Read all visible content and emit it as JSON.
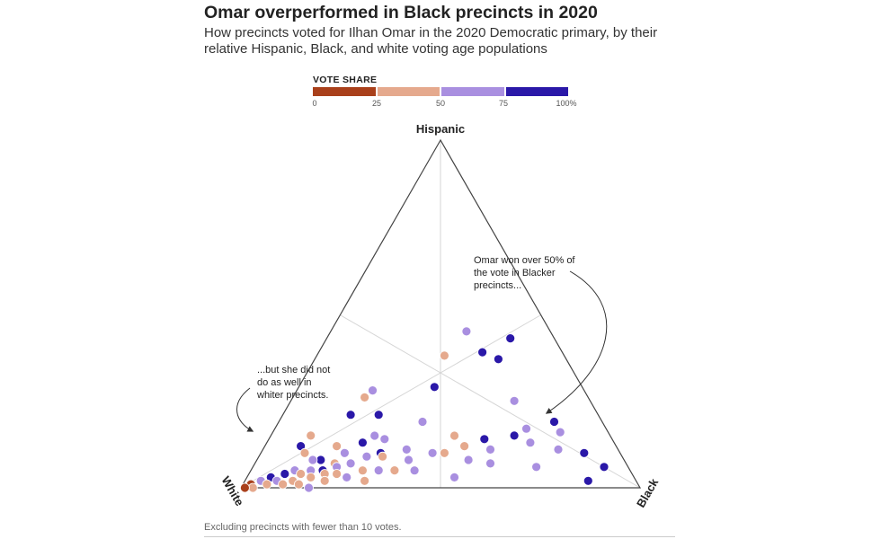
{
  "title": "Omar overperformed in Black precincts in 2020",
  "subtitle": "How precincts voted for Ilhan Omar in the 2020 Democratic primary, by their relative Hispanic, Black, and white voting age populations",
  "legend": {
    "title": "VOTE SHARE",
    "ticks": [
      "0",
      "25",
      "50",
      "75",
      "100%"
    ],
    "colors": [
      "#a9401b",
      "#e5a98d",
      "#a98fe0",
      "#2a18a8"
    ]
  },
  "annotations": {
    "right": "Omar won over 50% of the vote in Blacker precincts...",
    "left": "...but she did not do as well in whiter precincts."
  },
  "note": "Excluding precincts with fewer than 10 votes.",
  "chart_data": {
    "type": "scatter",
    "subtype": "ternary",
    "axes": [
      "Hispanic",
      "Black",
      "White"
    ],
    "color_scale": {
      "variable": "Vote share for Ilhan Omar",
      "bins": [
        [
          0,
          25
        ],
        [
          25,
          50
        ],
        [
          50,
          75
        ],
        [
          75,
          100
        ]
      ],
      "colors": [
        "#a9401b",
        "#e5a98d",
        "#a98fe0",
        "#2a18a8"
      ]
    },
    "points": [
      {
        "h": 0.45,
        "b": 0.34,
        "w": 0.21,
        "v": 60
      },
      {
        "h": 0.43,
        "b": 0.46,
        "w": 0.11,
        "v": 85
      },
      {
        "h": 0.39,
        "b": 0.41,
        "w": 0.2,
        "v": 85
      },
      {
        "h": 0.38,
        "b": 0.32,
        "w": 0.3,
        "v": 45
      },
      {
        "h": 0.37,
        "b": 0.46,
        "w": 0.17,
        "v": 85
      },
      {
        "h": 0.29,
        "b": 0.34,
        "w": 0.37,
        "v": 85
      },
      {
        "h": 0.28,
        "b": 0.19,
        "w": 0.53,
        "v": 60
      },
      {
        "h": 0.25,
        "b": 0.56,
        "w": 0.19,
        "v": 60
      },
      {
        "h": 0.26,
        "b": 0.18,
        "w": 0.56,
        "v": 45
      },
      {
        "h": 0.21,
        "b": 0.17,
        "w": 0.62,
        "v": 85
      },
      {
        "h": 0.21,
        "b": 0.24,
        "w": 0.55,
        "v": 85
      },
      {
        "h": 0.19,
        "b": 0.69,
        "w": 0.12,
        "v": 85
      },
      {
        "h": 0.19,
        "b": 0.36,
        "w": 0.45,
        "v": 60
      },
      {
        "h": 0.17,
        "b": 0.63,
        "w": 0.2,
        "v": 60
      },
      {
        "h": 0.16,
        "b": 0.72,
        "w": 0.12,
        "v": 60
      },
      {
        "h": 0.15,
        "b": 0.1,
        "w": 0.75,
        "v": 45
      },
      {
        "h": 0.15,
        "b": 0.61,
        "w": 0.24,
        "v": 85
      },
      {
        "h": 0.15,
        "b": 0.26,
        "w": 0.59,
        "v": 60
      },
      {
        "h": 0.14,
        "b": 0.29,
        "w": 0.57,
        "v": 60
      },
      {
        "h": 0.15,
        "b": 0.46,
        "w": 0.39,
        "v": 45
      },
      {
        "h": 0.14,
        "b": 0.54,
        "w": 0.32,
        "v": 85
      },
      {
        "h": 0.13,
        "b": 0.66,
        "w": 0.21,
        "v": 60
      },
      {
        "h": 0.13,
        "b": 0.24,
        "w": 0.63,
        "v": 85
      },
      {
        "h": 0.12,
        "b": 0.09,
        "w": 0.79,
        "v": 85
      },
      {
        "h": 0.12,
        "b": 0.5,
        "w": 0.38,
        "v": 45
      },
      {
        "h": 0.12,
        "b": 0.18,
        "w": 0.7,
        "v": 45
      },
      {
        "h": 0.1,
        "b": 0.81,
        "w": 0.09,
        "v": 85
      },
      {
        "h": 0.11,
        "b": 0.57,
        "w": 0.32,
        "v": 60
      },
      {
        "h": 0.11,
        "b": 0.36,
        "w": 0.53,
        "v": 60
      },
      {
        "h": 0.1,
        "b": 0.43,
        "w": 0.47,
        "v": 60
      },
      {
        "h": 0.11,
        "b": 0.74,
        "w": 0.15,
        "v": 60
      },
      {
        "h": 0.1,
        "b": 0.11,
        "w": 0.79,
        "v": 45
      },
      {
        "h": 0.1,
        "b": 0.3,
        "w": 0.6,
        "v": 85
      },
      {
        "h": 0.1,
        "b": 0.46,
        "w": 0.44,
        "v": 45
      },
      {
        "h": 0.1,
        "b": 0.21,
        "w": 0.69,
        "v": 60
      },
      {
        "h": 0.08,
        "b": 0.53,
        "w": 0.39,
        "v": 60
      },
      {
        "h": 0.09,
        "b": 0.27,
        "w": 0.64,
        "v": 60
      },
      {
        "h": 0.09,
        "b": 0.31,
        "w": 0.6,
        "v": 45
      },
      {
        "h": 0.08,
        "b": 0.38,
        "w": 0.54,
        "v": 60
      },
      {
        "h": 0.07,
        "b": 0.59,
        "w": 0.34,
        "v": 60
      },
      {
        "h": 0.08,
        "b": 0.16,
        "w": 0.76,
        "v": 85
      },
      {
        "h": 0.08,
        "b": 0.14,
        "w": 0.78,
        "v": 60
      },
      {
        "h": 0.07,
        "b": 0.2,
        "w": 0.73,
        "v": 45
      },
      {
        "h": 0.07,
        "b": 0.24,
        "w": 0.69,
        "v": 60
      },
      {
        "h": 0.06,
        "b": 0.21,
        "w": 0.73,
        "v": 60
      },
      {
        "h": 0.06,
        "b": 0.88,
        "w": 0.06,
        "v": 85
      },
      {
        "h": 0.06,
        "b": 0.71,
        "w": 0.23,
        "v": 60
      },
      {
        "h": 0.05,
        "b": 0.36,
        "w": 0.59,
        "v": 45
      },
      {
        "h": 0.05,
        "b": 0.41,
        "w": 0.54,
        "v": 60
      },
      {
        "h": 0.05,
        "b": 0.15,
        "w": 0.8,
        "v": 60
      },
      {
        "h": 0.05,
        "b": 0.18,
        "w": 0.77,
        "v": 85
      },
      {
        "h": 0.05,
        "b": 0.11,
        "w": 0.84,
        "v": 60
      },
      {
        "h": 0.05,
        "b": 0.28,
        "w": 0.67,
        "v": 45
      },
      {
        "h": 0.05,
        "b": 0.32,
        "w": 0.63,
        "v": 60
      },
      {
        "h": 0.04,
        "b": 0.13,
        "w": 0.83,
        "v": 45
      },
      {
        "h": 0.04,
        "b": 0.22,
        "w": 0.74,
        "v": 45
      },
      {
        "h": 0.04,
        "b": 0.19,
        "w": 0.77,
        "v": 45
      },
      {
        "h": 0.04,
        "b": 0.09,
        "w": 0.87,
        "v": 85
      },
      {
        "h": 0.03,
        "b": 0.52,
        "w": 0.45,
        "v": 60
      },
      {
        "h": 0.03,
        "b": 0.25,
        "w": 0.72,
        "v": 60
      },
      {
        "h": 0.03,
        "b": 0.16,
        "w": 0.81,
        "v": 45
      },
      {
        "h": 0.03,
        "b": 0.06,
        "w": 0.91,
        "v": 85
      },
      {
        "h": 0.02,
        "b": 0.3,
        "w": 0.68,
        "v": 45
      },
      {
        "h": 0.02,
        "b": 0.12,
        "w": 0.86,
        "v": 45
      },
      {
        "h": 0.02,
        "b": 0.86,
        "w": 0.12,
        "v": 85
      },
      {
        "h": 0.02,
        "b": 0.08,
        "w": 0.9,
        "v": 60
      },
      {
        "h": 0.02,
        "b": 0.2,
        "w": 0.78,
        "v": 45
      },
      {
        "h": 0.02,
        "b": 0.04,
        "w": 0.94,
        "v": 60
      },
      {
        "h": 0.01,
        "b": 0.1,
        "w": 0.89,
        "v": 45
      },
      {
        "h": 0.01,
        "b": 0.06,
        "w": 0.93,
        "v": 45
      },
      {
        "h": 0.01,
        "b": 0.02,
        "w": 0.97,
        "v": 15
      },
      {
        "h": 0.01,
        "b": 0.14,
        "w": 0.85,
        "v": 45
      },
      {
        "h": 0.0,
        "b": 0.03,
        "w": 0.97,
        "v": 45
      },
      {
        "h": 0.0,
        "b": 0.01,
        "w": 0.99,
        "v": 15
      },
      {
        "h": 0.0,
        "b": 0.17,
        "w": 0.83,
        "v": 60
      }
    ]
  }
}
